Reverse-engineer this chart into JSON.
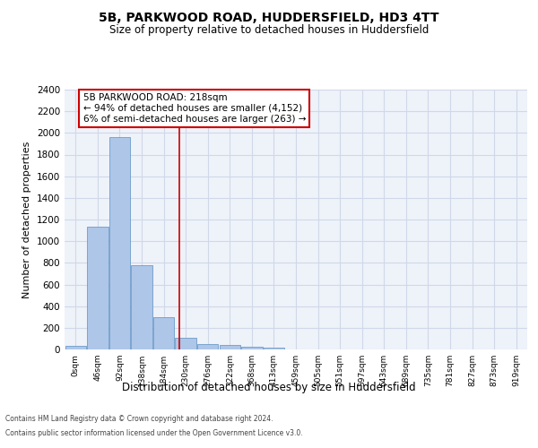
{
  "title": "5B, PARKWOOD ROAD, HUDDERSFIELD, HD3 4TT",
  "subtitle": "Size of property relative to detached houses in Huddersfield",
  "xlabel": "Distribution of detached houses by size in Huddersfield",
  "ylabel": "Number of detached properties",
  "bin_labels": [
    "0sqm",
    "46sqm",
    "92sqm",
    "138sqm",
    "184sqm",
    "230sqm",
    "276sqm",
    "322sqm",
    "368sqm",
    "413sqm",
    "459sqm",
    "505sqm",
    "551sqm",
    "597sqm",
    "643sqm",
    "689sqm",
    "735sqm",
    "781sqm",
    "827sqm",
    "873sqm",
    "919sqm"
  ],
  "bar_heights": [
    35,
    1135,
    1960,
    775,
    300,
    105,
    50,
    40,
    25,
    15,
    0,
    0,
    0,
    0,
    0,
    0,
    0,
    0,
    0,
    0,
    0
  ],
  "bar_color": "#aec6e8",
  "bar_edge_color": "#5a8fc2",
  "property_line_bin": 4.72,
  "annotation_text": "5B PARKWOOD ROAD: 218sqm\n← 94% of detached houses are smaller (4,152)\n6% of semi-detached houses are larger (263) →",
  "annotation_box_color": "#ffffff",
  "annotation_box_edge": "#cc0000",
  "red_line_color": "#cc0000",
  "grid_color": "#d0d8e8",
  "background_color": "#eef2f9",
  "footer_line1": "Contains HM Land Registry data © Crown copyright and database right 2024.",
  "footer_line2": "Contains public sector information licensed under the Open Government Licence v3.0.",
  "ylim": [
    0,
    2400
  ],
  "yticks": [
    0,
    200,
    400,
    600,
    800,
    1000,
    1200,
    1400,
    1600,
    1800,
    2000,
    2200,
    2400
  ]
}
